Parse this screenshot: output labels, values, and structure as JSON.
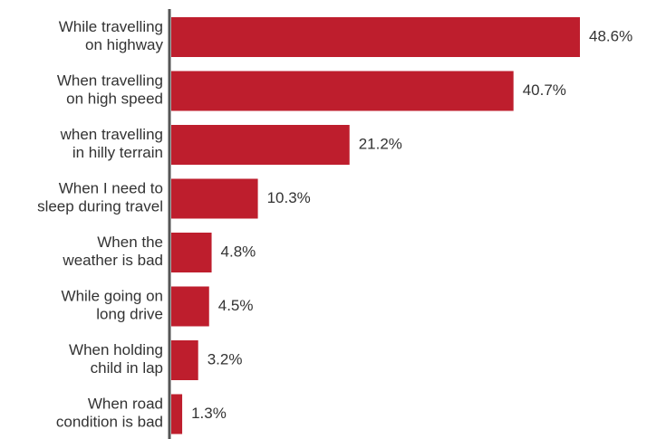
{
  "chart_data": {
    "type": "bar",
    "orientation": "horizontal",
    "categories": [
      [
        "While travelling",
        "on highway"
      ],
      [
        "When travelling",
        "on high speed"
      ],
      [
        "when travelling",
        "in hilly terrain"
      ],
      [
        "When I need to",
        "sleep during travel"
      ],
      [
        "When the",
        "weather is bad"
      ],
      [
        "While going on",
        "long drive"
      ],
      [
        "When holding",
        "child in lap"
      ],
      [
        "When road",
        "condition is bad"
      ]
    ],
    "values": [
      48.6,
      40.7,
      21.2,
      10.3,
      4.8,
      4.5,
      3.2,
      1.3
    ],
    "value_labels": [
      "48.6%",
      "40.7%",
      "21.2%",
      "10.3%",
      "4.8%",
      "4.5%",
      "3.2%",
      "1.3%"
    ],
    "color": "#be1e2d"
  }
}
